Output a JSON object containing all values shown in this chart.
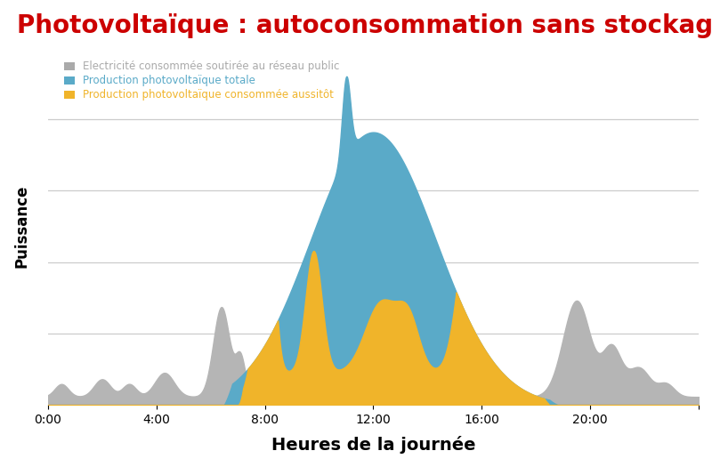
{
  "title": "Photovoltaïque : autoconsommation sans stockage",
  "title_color": "#cc0000",
  "title_fontsize": 20,
  "xlabel": "Heures de la journée",
  "ylabel": "Puissance",
  "background_color": "#ffffff",
  "legend_labels": [
    "Electricité consommée soutirée au réseau public",
    "Production photovoltaïque totale",
    "Production photovoltaïque consommée aussitôt"
  ],
  "legend_colors": [
    "#aaaaaa",
    "#5aaac8",
    "#f0b42a"
  ],
  "grid_color": "#cccccc",
  "x_ticks": [
    0,
    4,
    8,
    12,
    16,
    20,
    24
  ],
  "x_tick_labels": [
    "0:00",
    "4:00",
    "8:00",
    "12:00",
    "16:00",
    "20:00",
    ""
  ],
  "color_gray": "#b5b5b5",
  "color_blue": "#5aaac8",
  "color_yellow": "#f0b42a"
}
